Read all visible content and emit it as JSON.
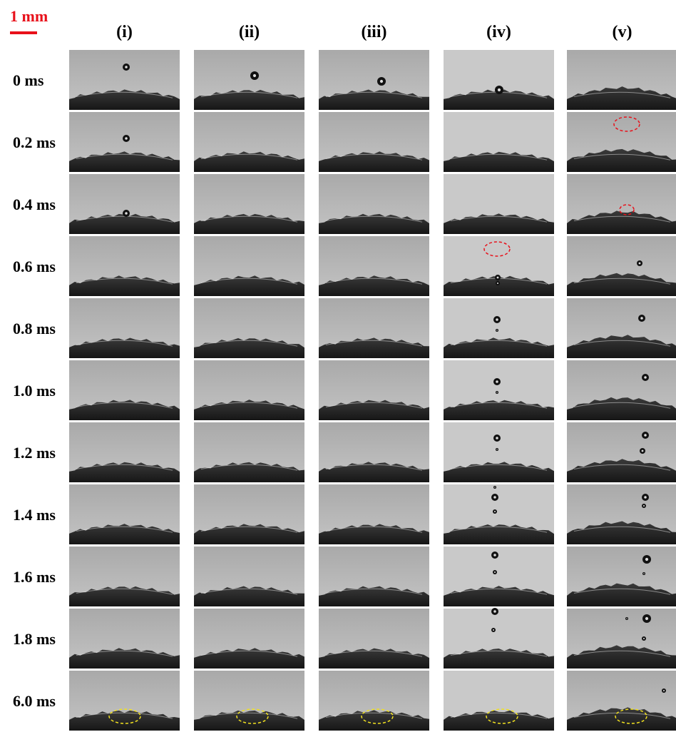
{
  "scale_bar": "1 mm",
  "columns": [
    "(i)",
    "(ii)",
    "(iii)",
    "(iv)",
    "(v)"
  ],
  "rows": [
    "0 ms",
    "0.2 ms",
    "0.4 ms",
    "0.6 ms",
    "0.8 ms",
    "1.0 ms",
    "1.2 ms",
    "1.4 ms",
    "1.6 ms",
    "1.8 ms",
    "6.0 ms"
  ]
}
